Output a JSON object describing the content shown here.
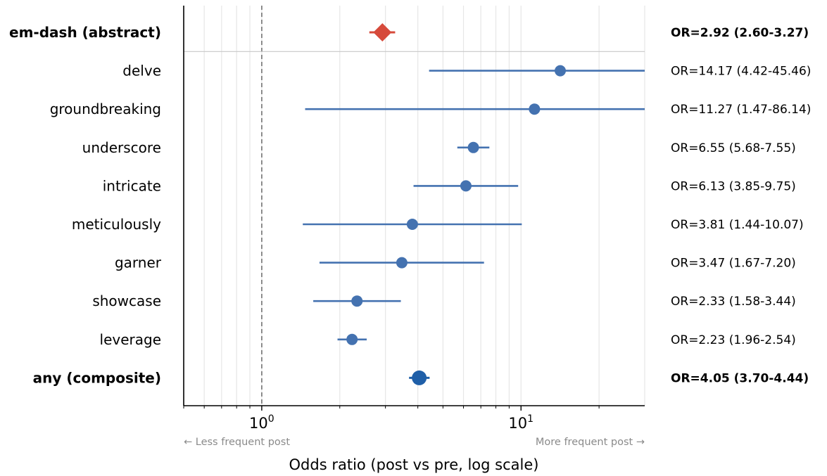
{
  "chart_data": {
    "type": "forest",
    "xlabel": "Odds ratio (post vs pre, log scale)",
    "x_scale": "log",
    "xlim": [
      0.5,
      30
    ],
    "x_ticks": [
      {
        "value": 1,
        "base": "10",
        "exp": "0"
      },
      {
        "value": 10,
        "base": "10",
        "exp": "1"
      }
    ],
    "reference_line": 1,
    "grid": true,
    "direction_labels": {
      "left": "← Less frequent post",
      "right": "More frequent post →"
    },
    "colors": {
      "highlight": "#d64a3b",
      "words": "#4472b0",
      "composite": "#1f5fa8",
      "reference": "#808080",
      "direction": "#8a8a8a"
    },
    "rows": [
      {
        "name": "em-dash (abstract)",
        "or": 2.92,
        "ci": [
          2.6,
          3.27
        ],
        "label": "OR=2.92 (2.60-3.27)",
        "style": "highlight"
      },
      {
        "name": "delve",
        "or": 14.17,
        "ci": [
          4.42,
          45.46
        ],
        "label": "OR=14.17 (4.42-45.46)",
        "style": "word"
      },
      {
        "name": "groundbreaking",
        "or": 11.27,
        "ci": [
          1.47,
          86.14
        ],
        "label": "OR=11.27 (1.47-86.14)",
        "style": "word"
      },
      {
        "name": "underscore",
        "or": 6.55,
        "ci": [
          5.68,
          7.55
        ],
        "label": "OR=6.55 (5.68-7.55)",
        "style": "word"
      },
      {
        "name": "intricate",
        "or": 6.13,
        "ci": [
          3.85,
          9.75
        ],
        "label": "OR=6.13 (3.85-9.75)",
        "style": "word"
      },
      {
        "name": "meticulously",
        "or": 3.81,
        "ci": [
          1.44,
          10.07
        ],
        "label": "OR=3.81 (1.44-10.07)",
        "style": "word"
      },
      {
        "name": "garner",
        "or": 3.47,
        "ci": [
          1.67,
          7.2
        ],
        "label": "OR=3.47 (1.67-7.20)",
        "style": "word"
      },
      {
        "name": "showcase",
        "or": 2.33,
        "ci": [
          1.58,
          3.44
        ],
        "label": "OR=2.33 (1.58-3.44)",
        "style": "word"
      },
      {
        "name": "leverage",
        "or": 2.23,
        "ci": [
          1.96,
          2.54
        ],
        "label": "OR=2.23 (1.96-2.54)",
        "style": "word"
      },
      {
        "name": "any (composite)",
        "or": 4.05,
        "ci": [
          3.7,
          4.44
        ],
        "label": "OR=4.05 (3.70-4.44)",
        "style": "composite"
      }
    ]
  }
}
